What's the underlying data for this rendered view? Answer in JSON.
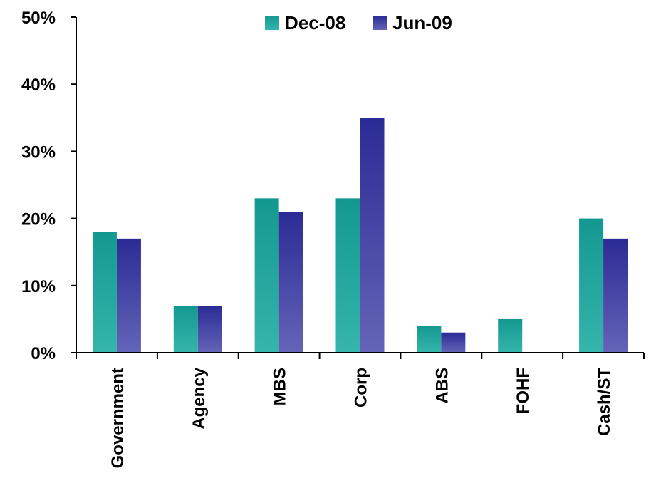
{
  "chart_data": {
    "type": "bar",
    "categories": [
      "Government",
      "Agency",
      "MBS",
      "Corp",
      "ABS",
      "FOHF",
      "Cash/ST"
    ],
    "series": [
      {
        "name": "Dec-08",
        "values": [
          18,
          7,
          23,
          23,
          4,
          5,
          20
        ],
        "color": "#1a9a94"
      },
      {
        "name": "Jun-09",
        "values": [
          17,
          7,
          21,
          35,
          3,
          0,
          17
        ],
        "color": "#2e2e96"
      }
    ],
    "ylim": [
      0,
      50
    ],
    "yticks": [
      "0%",
      "10%",
      "20%",
      "30%",
      "40%",
      "50%"
    ],
    "ytick_values": [
      0,
      10,
      20,
      30,
      40,
      50
    ],
    "legend_position": "top",
    "grid": false,
    "title": "",
    "xlabel": "",
    "ylabel": ""
  }
}
